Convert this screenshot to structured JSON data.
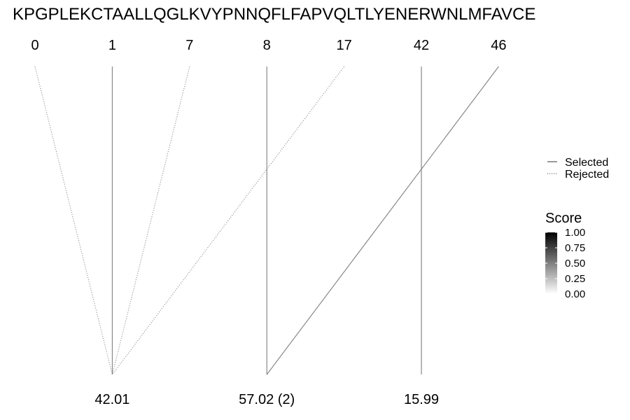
{
  "chart_data": {
    "type": "diagram",
    "sequence": "KPGPLEKCTAALLQGLKVYPNNQFLFAPVQLTLYENERWNLMFAVCE",
    "top_positions": [
      "0",
      "1",
      "7",
      "8",
      "17",
      "42",
      "46"
    ],
    "bottom_nodes": [
      {
        "label": "42.01"
      },
      {
        "label": "57.02 (2)"
      },
      {
        "label": "15.99"
      }
    ],
    "connections": [
      {
        "from": "0",
        "to": "42.01",
        "status": "Rejected"
      },
      {
        "from": "1",
        "to": "42.01",
        "status": "Selected"
      },
      {
        "from": "7",
        "to": "42.01",
        "status": "Rejected"
      },
      {
        "from": "17",
        "to": "42.01",
        "status": "Rejected"
      },
      {
        "from": "8",
        "to": "57.02 (2)",
        "status": "Selected"
      },
      {
        "from": "46",
        "to": "57.02 (2)",
        "status": "Selected"
      },
      {
        "from": "42",
        "to": "15.99",
        "status": "Selected"
      }
    ],
    "line_legend": [
      {
        "label": "Selected",
        "style": "solid"
      },
      {
        "label": "Rejected",
        "style": "dotted"
      }
    ],
    "score_legend": {
      "title": "Score",
      "ticks": [
        "1.00",
        "0.75",
        "0.50",
        "0.25",
        "0.00"
      ],
      "range": [
        0,
        1
      ],
      "color_high": "#000000",
      "color_low": "#ffffff"
    },
    "line_color": "#7f7f7f"
  }
}
